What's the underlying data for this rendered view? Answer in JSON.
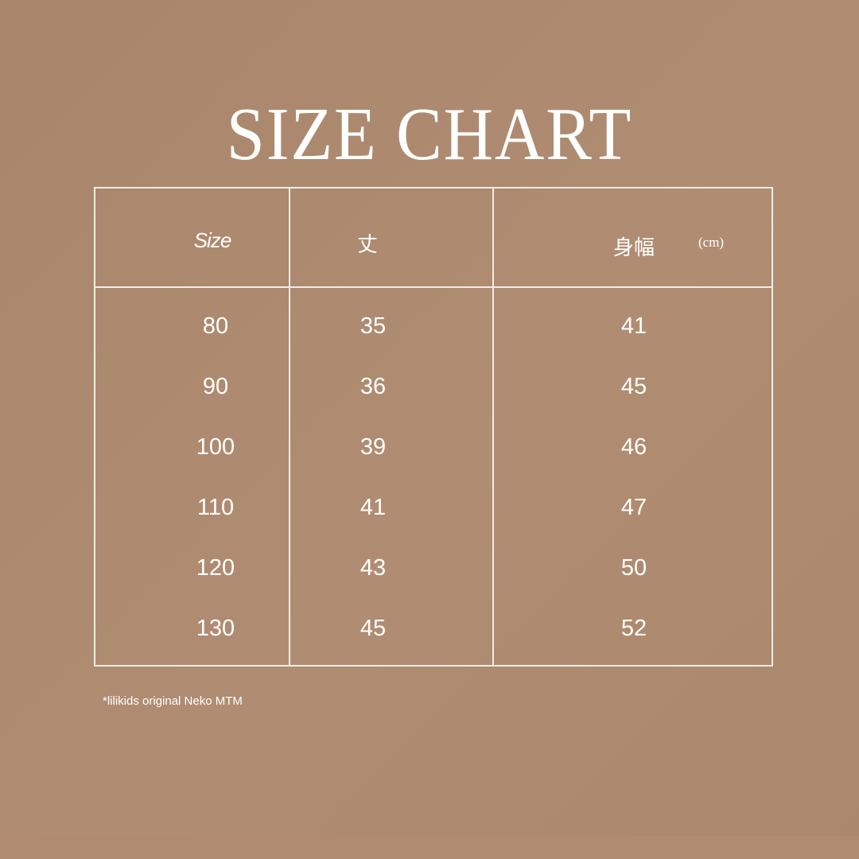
{
  "title": "SIZE CHART",
  "table": {
    "headers": [
      "Size",
      "丈",
      "身幅"
    ],
    "unit": "(cm)",
    "rows": [
      [
        "80",
        "35",
        "41"
      ],
      [
        "90",
        "36",
        "45"
      ],
      [
        "100",
        "39",
        "46"
      ],
      [
        "110",
        "41",
        "47"
      ],
      [
        "120",
        "43",
        "50"
      ],
      [
        "130",
        "45",
        "52"
      ]
    ]
  },
  "footnote": "*lilikids original Neko MTM",
  "colors": {
    "background": "#ab876b",
    "text": "#ffffff",
    "lines": "#f3ece6"
  }
}
